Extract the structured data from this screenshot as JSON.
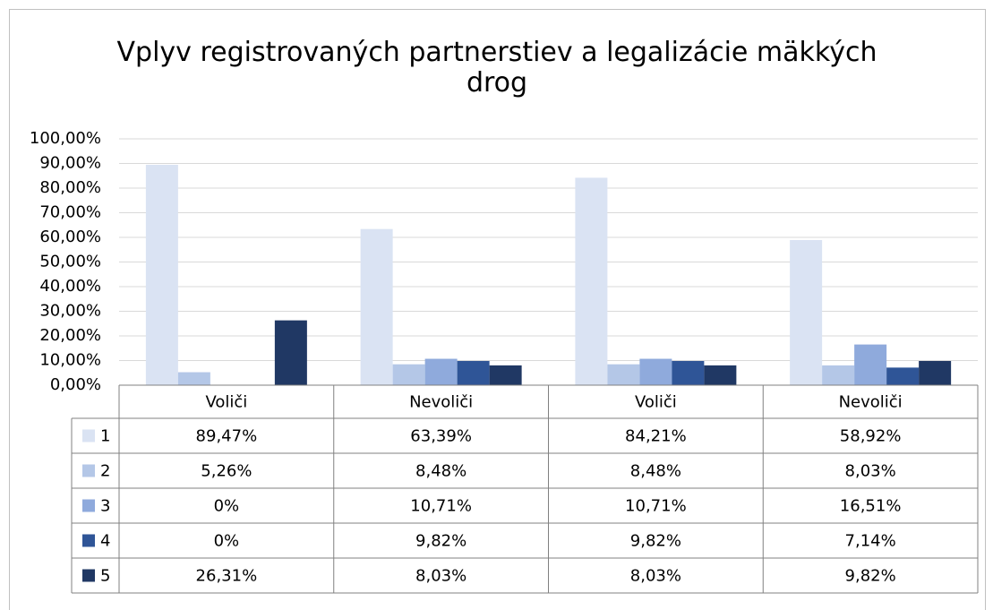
{
  "chart_data": {
    "type": "bar",
    "title": "Vplyv registrovaných partnerstiev a legalizácie mäkkých drog",
    "categories": [
      "Voliči",
      "Nevoliči",
      "Voliči",
      "Nevoliči"
    ],
    "series": [
      {
        "name": "1",
        "color": "#dae3f3",
        "values": [
          89.47,
          63.39,
          84.21,
          58.92
        ],
        "value_labels": [
          "89,47%",
          "63,39%",
          "84,21%",
          "58,92%"
        ]
      },
      {
        "name": "2",
        "color": "#b4c7e7",
        "values": [
          5.26,
          8.48,
          8.48,
          8.03
        ],
        "value_labels": [
          "5,26%",
          "8,48%",
          "8,48%",
          "8,03%"
        ]
      },
      {
        "name": "3",
        "color": "#8faadc",
        "values": [
          0,
          10.71,
          10.71,
          16.51
        ],
        "value_labels": [
          "0%",
          "10,71%",
          "10,71%",
          "16,51%"
        ]
      },
      {
        "name": "4",
        "color": "#2f5597",
        "values": [
          0,
          9.82,
          9.82,
          7.14
        ],
        "value_labels": [
          "0%",
          "9,82%",
          "9,82%",
          "7,14%"
        ]
      },
      {
        "name": "5",
        "color": "#203864",
        "values": [
          26.31,
          8.03,
          8.03,
          9.82
        ],
        "value_labels": [
          "26,31%",
          "8,03%",
          "8,03%",
          "9,82%"
        ]
      }
    ],
    "ylim": [
      0,
      100
    ],
    "yticks": [
      {
        "value": 0,
        "label": "0,00%"
      },
      {
        "value": 10,
        "label": "10,00%"
      },
      {
        "value": 20,
        "label": "20,00%"
      },
      {
        "value": 30,
        "label": "30,00%"
      },
      {
        "value": 40,
        "label": "40,00%"
      },
      {
        "value": 50,
        "label": "50,00%"
      },
      {
        "value": 60,
        "label": "60,00%"
      },
      {
        "value": 70,
        "label": "70,00%"
      },
      {
        "value": 80,
        "label": "80,00%"
      },
      {
        "value": 90,
        "label": "90,00%"
      },
      {
        "value": 100,
        "label": "100,00%"
      }
    ],
    "grid": true
  }
}
